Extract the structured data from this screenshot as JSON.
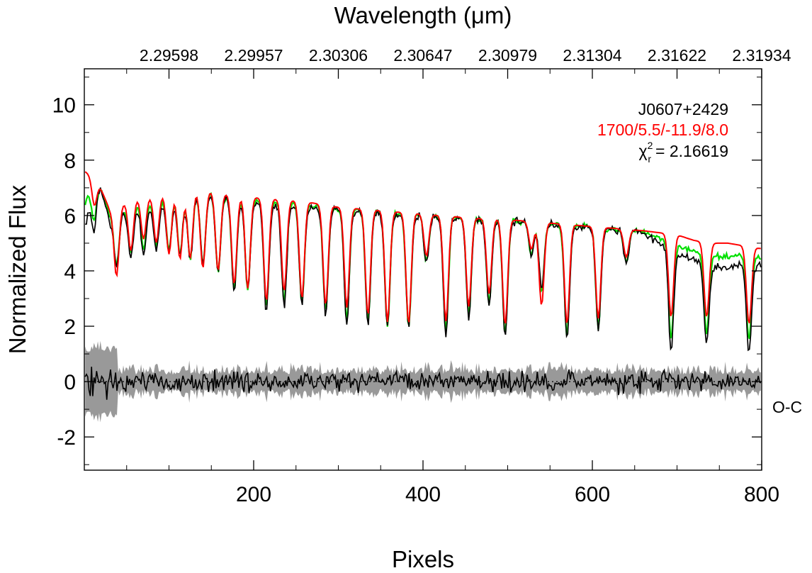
{
  "chart_data": {
    "type": "line",
    "title": "",
    "xlabel": "Pixels",
    "ylabel": "Normalized Flux",
    "top_xlabel": "Wavelength (μm)",
    "xlim": [
      0,
      800
    ],
    "ylim": [
      -3.2,
      11.3
    ],
    "x_ticks": [
      200,
      400,
      600,
      800
    ],
    "y_ticks": [
      -2,
      0,
      2,
      4,
      6,
      8,
      10
    ],
    "top_ticks": [
      {
        "pixel": 100,
        "label": "2.29598"
      },
      {
        "pixel": 200,
        "label": "2.29957"
      },
      {
        "pixel": 300,
        "label": "2.30306"
      },
      {
        "pixel": 400,
        "label": "2.30647"
      },
      {
        "pixel": 500,
        "label": "2.30979"
      },
      {
        "pixel": 600,
        "label": "2.31304"
      },
      {
        "pixel": 700,
        "label": "2.31622"
      },
      {
        "pixel": 800,
        "label": "2.31934"
      }
    ],
    "annotations": {
      "object": "J0607+2429",
      "model": "1700/5.5/-11.9/8.0",
      "chi_symbol": "χ",
      "chi_sup": "2",
      "chi_sub": "r",
      "chi_value": "= 2.16619",
      "residual_label": "O-C"
    },
    "colors": {
      "observed": "#000000",
      "model_best": "#ff0000",
      "model_alt": "#00e000",
      "residual_band": "#999999",
      "zero_line": "#000000"
    },
    "continuum": {
      "x": [
        0,
        15,
        30,
        60,
        100,
        140,
        180,
        220,
        260,
        300,
        340,
        380,
        420,
        460,
        500,
        540,
        580,
        620,
        660,
        700,
        720,
        740,
        760,
        780,
        800
      ],
      "observed": [
        5.5,
        7.5,
        5.8,
        6.2,
        6.5,
        6.8,
        6.5,
        6.4,
        6.3,
        6.2,
        6.1,
        6.0,
        5.95,
        5.85,
        5.8,
        5.7,
        5.6,
        5.5,
        5.4,
        4.6,
        4.4,
        4.2,
        4.1,
        4.3,
        4.2
      ],
      "model_red": [
        7.6,
        7.3,
        6.2,
        6.6,
        6.8,
        6.9,
        6.7,
        6.6,
        6.5,
        6.3,
        6.2,
        6.1,
        6.0,
        5.9,
        5.85,
        5.75,
        5.65,
        5.55,
        5.45,
        5.3,
        5.1,
        5.0,
        5.0,
        4.9,
        4.8
      ]
    },
    "absorption_lines": [
      {
        "x": 12,
        "depth_obs": 1.6,
        "depth_red": 1.0
      },
      {
        "x": 38,
        "depth_obs": 1.7,
        "depth_red": 2.5
      },
      {
        "x": 55,
        "depth_obs": 1.6,
        "depth_red": 1.8
      },
      {
        "x": 70,
        "depth_obs": 1.7,
        "depth_red": 1.5
      },
      {
        "x": 85,
        "depth_obs": 1.6,
        "depth_red": 1.7
      },
      {
        "x": 100,
        "depth_obs": 1.8,
        "depth_red": 2.2
      },
      {
        "x": 113,
        "depth_obs": 2.0,
        "depth_red": 2.4
      },
      {
        "x": 125,
        "depth_obs": 2.3,
        "depth_red": 2.4
      },
      {
        "x": 140,
        "depth_obs": 2.6,
        "depth_red": 2.8
      },
      {
        "x": 158,
        "depth_obs": 2.7,
        "depth_red": 2.8
      },
      {
        "x": 177,
        "depth_obs": 3.3,
        "depth_red": 3.2
      },
      {
        "x": 193,
        "depth_obs": 3.2,
        "depth_red": 3.3
      },
      {
        "x": 215,
        "depth_obs": 3.9,
        "depth_red": 3.7
      },
      {
        "x": 236,
        "depth_obs": 3.7,
        "depth_red": 3.3
      },
      {
        "x": 257,
        "depth_obs": 3.5,
        "depth_red": 3.5
      },
      {
        "x": 285,
        "depth_obs": 3.8,
        "depth_red": 3.6
      },
      {
        "x": 310,
        "depth_obs": 4.2,
        "depth_red": 3.6
      },
      {
        "x": 335,
        "depth_obs": 4.1,
        "depth_red": 3.8
      },
      {
        "x": 358,
        "depth_obs": 4.1,
        "depth_red": 4.0
      },
      {
        "x": 383,
        "depth_obs": 4.1,
        "depth_red": 4.0
      },
      {
        "x": 404,
        "depth_obs": 1.7,
        "depth_red": 1.5
      },
      {
        "x": 427,
        "depth_obs": 4.3,
        "depth_red": 3.8
      },
      {
        "x": 454,
        "depth_obs": 3.6,
        "depth_red": 3.2
      },
      {
        "x": 478,
        "depth_obs": 3.1,
        "depth_red": 2.7
      },
      {
        "x": 497,
        "depth_obs": 4.2,
        "depth_red": 3.8
      },
      {
        "x": 528,
        "depth_obs": 1.2,
        "depth_red": 1.0
      },
      {
        "x": 540,
        "depth_obs": 2.3,
        "depth_red": 3.0
      },
      {
        "x": 570,
        "depth_obs": 4.1,
        "depth_red": 3.6
      },
      {
        "x": 607,
        "depth_obs": 3.7,
        "depth_red": 3.3
      },
      {
        "x": 640,
        "depth_obs": 1.2,
        "depth_red": 1.0
      },
      {
        "x": 693,
        "depth_obs": 3.6,
        "depth_red": 3.0
      },
      {
        "x": 735,
        "depth_obs": 2.9,
        "depth_red": 2.7
      },
      {
        "x": 785,
        "depth_obs": 3.2,
        "depth_red": 2.8
      }
    ]
  }
}
